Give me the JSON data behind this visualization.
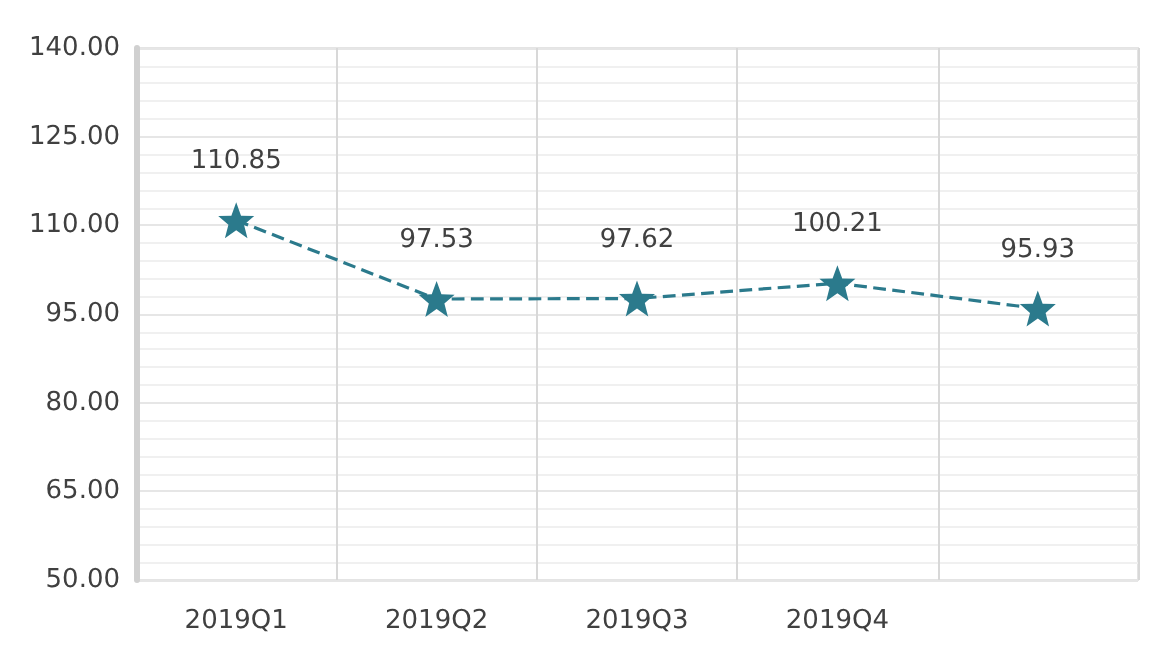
{
  "chart_data": {
    "type": "line",
    "categories": [
      "2019Q1",
      "2019Q2",
      "2019Q3",
      "2019Q4",
      null
    ],
    "series": [
      {
        "color": "#2b7a8c",
        "values": [
          110.85,
          97.53,
          97.62,
          100.21,
          95.93
        ]
      }
    ],
    "ylim": [
      50,
      140
    ],
    "yticks": [
      {
        "value": 50,
        "label": "50.00"
      },
      {
        "value": 65,
        "label": "65.00"
      },
      {
        "value": 80,
        "label": "80.00"
      },
      {
        "value": 95,
        "label": "95.00"
      },
      {
        "value": 110,
        "label": "110.00"
      },
      {
        "value": 125,
        "label": "125.00"
      },
      {
        "value": 140,
        "label": "140.00"
      }
    ],
    "grid": true,
    "marker": "star",
    "line_style": "dashed",
    "data_labels": true
  }
}
